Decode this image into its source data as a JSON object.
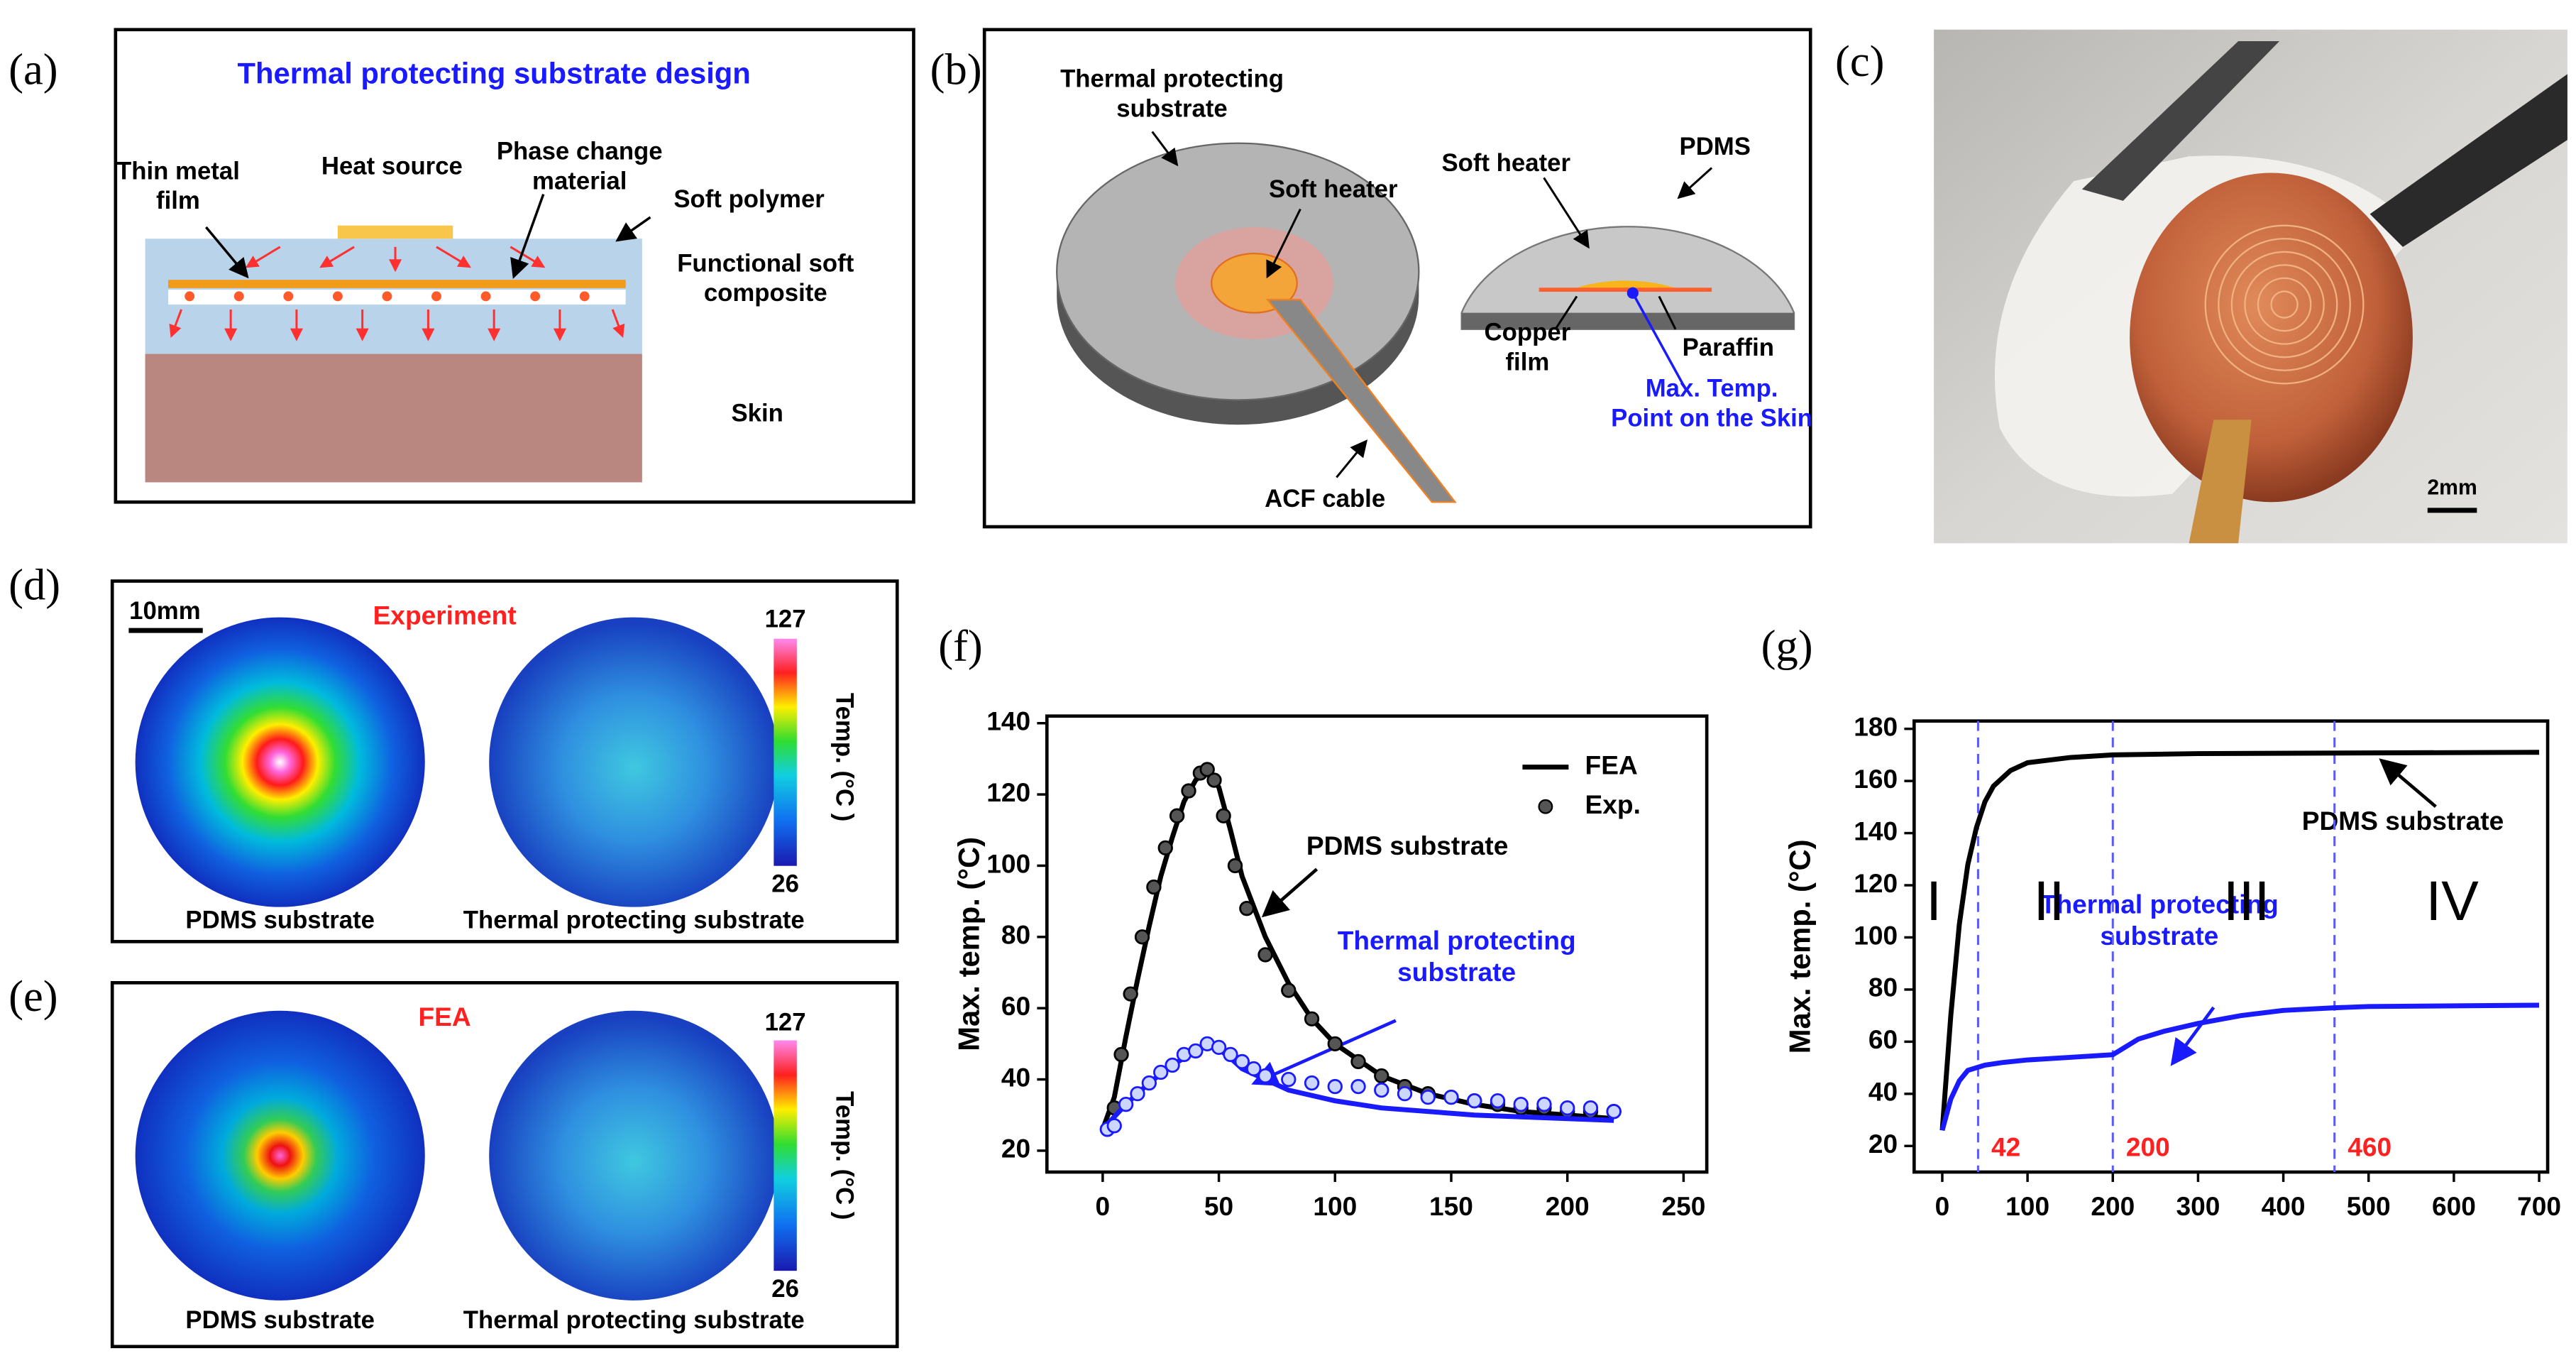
{
  "panels": {
    "a": {
      "label": "(a)",
      "title": "Thermal protecting substrate design",
      "heat_source": "Heat source",
      "metal_film": "Thin metal\nfilm",
      "pcm": "Phase change\nmaterial",
      "soft_polymer": "Soft polymer",
      "composite": "Functional soft\ncomposite",
      "skin": "Skin"
    },
    "b": {
      "label": "(b)",
      "substrate": "Thermal protecting\nsubstrate",
      "heater_left": "Soft heater",
      "heater_right": "Soft heater",
      "pdms": "PDMS",
      "copper": "Copper\nfilm",
      "paraffin": "Paraffin",
      "max_point": "Max. Temp.\nPoint on the Skin",
      "cable": "ACF cable"
    },
    "c": {
      "label": "(c)",
      "scale": "2mm"
    },
    "d": {
      "label": "(d)",
      "scale": "10mm",
      "title": "Experiment",
      "left": "PDMS substrate",
      "right": "Thermal protecting substrate",
      "cbar_max": "127",
      "cbar_min": "26",
      "cbar_label": "Temp. (°C )"
    },
    "e": {
      "label": "(e)",
      "title": "FEA",
      "left": "PDMS substrate",
      "right": "Thermal protecting substrate",
      "cbar_max": "127",
      "cbar_min": "26",
      "cbar_label": "Temp. (°C )"
    }
  },
  "chart_data": [
    {
      "type": "line",
      "label": "(f)",
      "y_label": "Max. temp. (°C)",
      "xlim": [
        -24,
        260
      ],
      "xticks": [
        0,
        50,
        100,
        150,
        200,
        250
      ],
      "ylim": [
        14,
        142
      ],
      "yticks": [
        20,
        40,
        60,
        80,
        100,
        120,
        140
      ],
      "legend": [
        {
          "name": "FEA",
          "style": "line"
        },
        {
          "name": "Exp.",
          "style": "marker"
        }
      ],
      "annotations": [
        "PDMS substrate",
        "Thermal protecting\nsubstrate"
      ],
      "series": [
        {
          "style": "line",
          "color": "#000000",
          "x": [
            0,
            5,
            10,
            15,
            20,
            25,
            30,
            35,
            40,
            45,
            50,
            55,
            60,
            70,
            80,
            90,
            100,
            120,
            140,
            160,
            180,
            200,
            220
          ],
          "values": [
            26,
            35,
            52,
            68,
            83,
            97,
            108,
            118,
            124,
            127,
            122,
            110,
            97,
            80,
            67,
            57,
            50,
            41,
            36,
            33,
            31,
            30,
            29
          ]
        },
        {
          "style": "marker",
          "color": "#000000",
          "x": [
            2,
            5,
            8,
            12,
            17,
            22,
            27,
            32,
            37,
            42,
            45,
            48,
            52,
            57,
            62,
            70,
            80,
            90,
            100,
            110,
            120,
            130,
            140,
            150,
            160,
            170,
            180,
            190,
            200,
            210,
            220
          ],
          "values": [
            26,
            32,
            47,
            64,
            80,
            94,
            105,
            114,
            121,
            126,
            127,
            124,
            114,
            100,
            88,
            75,
            65,
            57,
            50,
            45,
            41,
            38,
            36,
            35,
            34,
            33,
            32,
            32,
            31,
            31,
            31
          ]
        },
        {
          "style": "line",
          "color": "#1a1aff",
          "x": [
            0,
            10,
            20,
            30,
            40,
            47,
            55,
            60,
            70,
            80,
            100,
            120,
            140,
            160,
            180,
            200,
            220
          ],
          "values": [
            26,
            33,
            39,
            44,
            48,
            50,
            46,
            43,
            40,
            37,
            34,
            32,
            31,
            30,
            29.5,
            29,
            28.5
          ]
        },
        {
          "style": "marker",
          "color": "#1a1aff",
          "x": [
            2,
            5,
            10,
            15,
            20,
            25,
            30,
            35,
            40,
            45,
            50,
            55,
            60,
            65,
            70,
            80,
            90,
            100,
            110,
            120,
            130,
            140,
            150,
            160,
            170,
            180,
            190,
            200,
            210,
            220
          ],
          "values": [
            26,
            27,
            33,
            36,
            39,
            42,
            44,
            47,
            48,
            50,
            49,
            47,
            45,
            43,
            41,
            40,
            39,
            38,
            38,
            37,
            36,
            35,
            35,
            34,
            34,
            33,
            33,
            32,
            32,
            31
          ]
        }
      ]
    },
    {
      "type": "line",
      "label": "(g)",
      "y_label": "Max. temp. (°C)",
      "xlim": [
        -33,
        710
      ],
      "xticks": [
        0,
        100,
        200,
        300,
        400,
        500,
        600,
        700
      ],
      "ylim": [
        10,
        183
      ],
      "yticks": [
        20,
        40,
        60,
        80,
        100,
        120,
        140,
        160,
        180
      ],
      "vlines": [
        42,
        200,
        460
      ],
      "regions": [
        "I",
        "II",
        "III",
        "IV"
      ],
      "annotations": [
        "PDMS substrate",
        "Thermal protecting\nsubstrate"
      ],
      "series": [
        {
          "style": "line",
          "color": "#000000",
          "x": [
            0,
            10,
            20,
            30,
            40,
            50,
            60,
            80,
            100,
            150,
            200,
            300,
            700
          ],
          "values": [
            26,
            70,
            105,
            128,
            142,
            152,
            158,
            164,
            167,
            169,
            170,
            170.5,
            171
          ]
        },
        {
          "style": "line",
          "color": "#1a1aff",
          "x": [
            0,
            10,
            20,
            30,
            40,
            50,
            70,
            100,
            150,
            200,
            210,
            230,
            260,
            300,
            350,
            400,
            460,
            500,
            700
          ],
          "values": [
            26,
            38,
            45,
            49,
            50,
            51,
            52,
            53,
            54,
            55,
            57,
            61,
            64,
            67,
            70,
            72,
            73,
            73.5,
            74
          ]
        }
      ]
    }
  ]
}
